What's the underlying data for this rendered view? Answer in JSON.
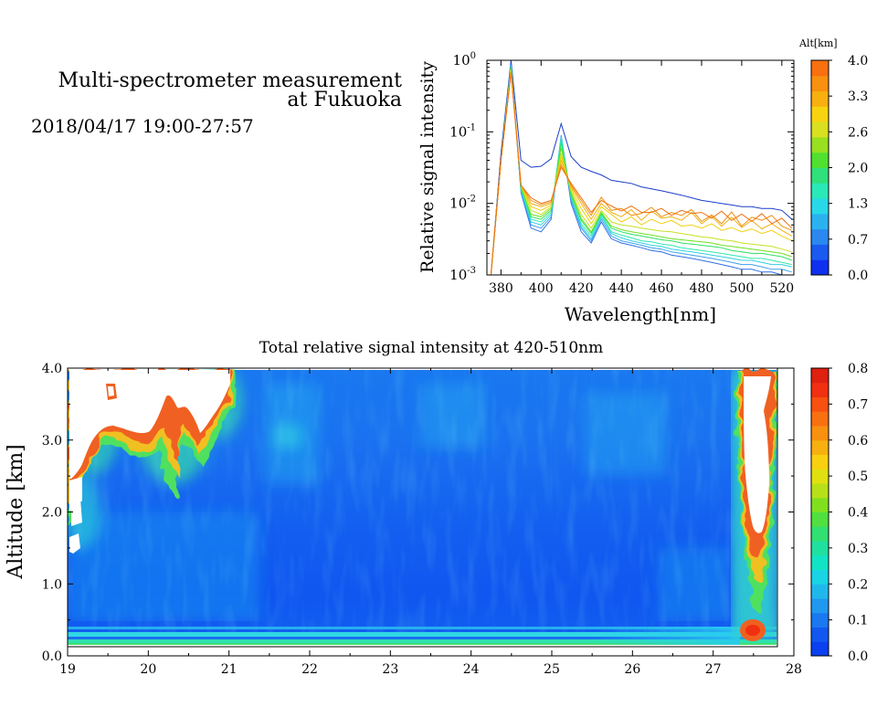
{
  "header": {
    "title_line1": "Multi-spectrometer measurement",
    "title_line2": "at Fukuoka",
    "date_range": "2018/04/17 19:00-27:57"
  },
  "chart_data": [
    {
      "type": "line",
      "xlabel": "Wavelength[nm]",
      "ylabel": "Relative signal intensity",
      "xlim": [
        373,
        526
      ],
      "ylim": [
        0.001,
        1
      ],
      "yscale": "log",
      "x_ticks": [
        380,
        400,
        420,
        440,
        460,
        480,
        500,
        520
      ],
      "y_ticks": [
        {
          "value": 1,
          "base": "10",
          "exp": "0"
        },
        {
          "value": 0.1,
          "base": "10",
          "exp": "-1"
        },
        {
          "value": 0.01,
          "base": "10",
          "exp": "-2"
        },
        {
          "value": 0.001,
          "base": "10",
          "exp": "-3"
        }
      ],
      "x": [
        375,
        380,
        385,
        390,
        395,
        400,
        405,
        410,
        415,
        420,
        425,
        430,
        435,
        440,
        445,
        450,
        455,
        460,
        465,
        470,
        475,
        480,
        485,
        490,
        495,
        500,
        505,
        510,
        515,
        520,
        525
      ],
      "series": [
        {
          "alt_km": 0.0,
          "color": "#1a3ec8",
          "values": [
            0.001,
            0.05,
            1.0,
            0.04,
            0.032,
            0.033,
            0.042,
            0.13,
            0.045,
            0.032,
            0.028,
            0.025,
            0.021,
            0.02,
            0.019,
            0.017,
            0.016,
            0.015,
            0.014,
            0.013,
            0.012,
            0.011,
            0.0105,
            0.01,
            0.0095,
            0.009,
            0.009,
            0.0085,
            0.0085,
            0.008,
            0.006
          ]
        },
        {
          "alt_km": 0.3,
          "color": "#2f6fe8",
          "values": [
            0.001,
            0.04,
            0.9,
            0.014,
            0.0045,
            0.004,
            0.006,
            0.085,
            0.01,
            0.004,
            0.0028,
            0.0055,
            0.0032,
            0.0028,
            0.0026,
            0.0024,
            0.0022,
            0.0021,
            0.0019,
            0.0018,
            0.0017,
            0.0016,
            0.0015,
            0.0014,
            0.0013,
            0.0012,
            0.0012,
            0.0011,
            0.0011,
            0.001,
            0.001
          ]
        },
        {
          "alt_km": 0.6,
          "color": "#3ea0f0",
          "values": [
            0.001,
            0.04,
            0.85,
            0.015,
            0.005,
            0.0045,
            0.0065,
            0.09,
            0.011,
            0.0045,
            0.003,
            0.006,
            0.0035,
            0.003,
            0.0028,
            0.0026,
            0.0024,
            0.0023,
            0.0021,
            0.002,
            0.0019,
            0.0018,
            0.0017,
            0.0016,
            0.0015,
            0.0014,
            0.0014,
            0.0013,
            0.0012,
            0.0012,
            0.0011
          ]
        },
        {
          "alt_km": 1.0,
          "color": "#30d0e0",
          "values": [
            0.001,
            0.04,
            0.85,
            0.015,
            0.0055,
            0.005,
            0.007,
            0.085,
            0.012,
            0.0048,
            0.0032,
            0.0065,
            0.0038,
            0.0033,
            0.003,
            0.0028,
            0.0026,
            0.0025,
            0.0023,
            0.0022,
            0.0021,
            0.002,
            0.0019,
            0.0018,
            0.0017,
            0.0016,
            0.0016,
            0.0015,
            0.0014,
            0.0014,
            0.0013
          ]
        },
        {
          "alt_km": 1.3,
          "color": "#2fe8b0",
          "values": [
            0.001,
            0.04,
            0.82,
            0.016,
            0.006,
            0.0055,
            0.0075,
            0.08,
            0.012,
            0.0052,
            0.0035,
            0.007,
            0.004,
            0.0036,
            0.0033,
            0.003,
            0.0029,
            0.0027,
            0.0026,
            0.0024,
            0.0023,
            0.0022,
            0.0021,
            0.002,
            0.0019,
            0.0018,
            0.0017,
            0.0017,
            0.0016,
            0.0015,
            0.0014
          ]
        },
        {
          "alt_km": 1.7,
          "color": "#30e060",
          "values": [
            0.001,
            0.04,
            0.8,
            0.017,
            0.0065,
            0.006,
            0.008,
            0.07,
            0.013,
            0.0058,
            0.0038,
            0.0072,
            0.0045,
            0.004,
            0.0037,
            0.0035,
            0.0033,
            0.0031,
            0.003,
            0.0028,
            0.0027,
            0.0026,
            0.0025,
            0.0024,
            0.0022,
            0.0021,
            0.002,
            0.002,
            0.0019,
            0.0018,
            0.0016
          ]
        },
        {
          "alt_km": 2.0,
          "color": "#70e020",
          "values": [
            0.001,
            0.04,
            0.78,
            0.017,
            0.007,
            0.0065,
            0.0085,
            0.06,
            0.014,
            0.0062,
            0.004,
            0.0075,
            0.0048,
            0.0043,
            0.004,
            0.0038,
            0.0036,
            0.0034,
            0.0032,
            0.0031,
            0.003,
            0.0029,
            0.0028,
            0.0026,
            0.0025,
            0.0024,
            0.0023,
            0.0022,
            0.0021,
            0.002,
            0.0018
          ]
        },
        {
          "alt_km": 2.3,
          "color": "#c8e020",
          "values": [
            0.001,
            0.04,
            0.75,
            0.018,
            0.008,
            0.007,
            0.009,
            0.05,
            0.015,
            0.007,
            0.0045,
            0.008,
            0.0055,
            0.005,
            0.0048,
            0.0045,
            0.0043,
            0.0041,
            0.004,
            0.0038,
            0.0036,
            0.0034,
            0.0033,
            0.0031,
            0.003,
            0.0028,
            0.0027,
            0.0026,
            0.0025,
            0.0023,
            0.0021
          ]
        },
        {
          "alt_km": 2.6,
          "color": "#f0d010",
          "values": [
            0.001,
            0.04,
            0.72,
            0.018,
            0.009,
            0.008,
            0.0095,
            0.045,
            0.016,
            0.0085,
            0.0052,
            0.009,
            0.007,
            0.0055,
            0.0065,
            0.005,
            0.006,
            0.0052,
            0.0058,
            0.0048,
            0.005,
            0.0045,
            0.0052,
            0.0042,
            0.0046,
            0.004,
            0.0044,
            0.0038,
            0.0042,
            0.0035,
            0.003
          ]
        },
        {
          "alt_km": 3.0,
          "color": "#f0b010",
          "values": [
            0.001,
            0.04,
            0.7,
            0.018,
            0.01,
            0.009,
            0.01,
            0.04,
            0.017,
            0.01,
            0.006,
            0.01,
            0.0075,
            0.0065,
            0.0082,
            0.0058,
            0.0078,
            0.0062,
            0.0065,
            0.0058,
            0.0075,
            0.0052,
            0.0066,
            0.0048,
            0.0064,
            0.0046,
            0.0058,
            0.0044,
            0.0052,
            0.0042,
            0.0035
          ]
        },
        {
          "alt_km": 3.3,
          "color": "#f09010",
          "values": [
            0.001,
            0.04,
            0.68,
            0.018,
            0.011,
            0.0095,
            0.0105,
            0.035,
            0.018,
            0.011,
            0.0068,
            0.0122,
            0.008,
            0.0085,
            0.0068,
            0.0072,
            0.0088,
            0.0065,
            0.0075,
            0.0068,
            0.0082,
            0.0056,
            0.0069,
            0.0052,
            0.0076,
            0.0048,
            0.0064,
            0.0058,
            0.0068,
            0.0048,
            0.0042
          ]
        },
        {
          "alt_km": 3.7,
          "color": "#f07010",
          "values": [
            0.001,
            0.04,
            0.66,
            0.018,
            0.012,
            0.01,
            0.011,
            0.032,
            0.019,
            0.012,
            0.0075,
            0.011,
            0.0092,
            0.0078,
            0.0092,
            0.0075,
            0.0075,
            0.0085,
            0.0068,
            0.008,
            0.0072,
            0.0075,
            0.0062,
            0.0078,
            0.0058,
            0.0071,
            0.0056,
            0.0072,
            0.0052,
            0.0062,
            0.0045
          ]
        }
      ],
      "colorbar": {
        "title": "Alt[km]",
        "tick_labels": [
          "0.0",
          "0.7",
          "1.3",
          "2.0",
          "2.6",
          "3.3",
          "4.0"
        ],
        "colors": [
          "#1030f0",
          "#1a5af0",
          "#2a88f0",
          "#2ab2f0",
          "#28d8e8",
          "#2ae8b8",
          "#30e07a",
          "#50e030",
          "#98e020",
          "#d8e020",
          "#f8d410",
          "#f8b010",
          "#f89010",
          "#f87010"
        ]
      }
    },
    {
      "type": "heatmap",
      "title": "Total relative signal intensity at 420-510nm",
      "ylabel": "Altitude [km]",
      "xlabel": "",
      "xlim": [
        19,
        28
      ],
      "ylim": [
        0,
        4
      ],
      "x_ticks": [
        "19",
        "20",
        "21",
        "22",
        "23",
        "24",
        "25",
        "26",
        "27",
        "28"
      ],
      "y_ticks": [
        "0.0",
        "1.0",
        "2.0",
        "3.0",
        "4.0"
      ],
      "data_x_range": [
        19.0,
        27.95
      ],
      "data_y_range": [
        0.15,
        4.0
      ],
      "value_range": [
        0,
        0.8
      ],
      "colorbar": {
        "tick_labels": [
          "0.0",
          "0.1",
          "0.2",
          "0.3",
          "0.4",
          "0.5",
          "0.6",
          "0.7",
          "0.8"
        ],
        "colors": [
          "#0a40f0",
          "#1258f0",
          "#1a78f0",
          "#2098f0",
          "#20b8ec",
          "#18d4e4",
          "#10e4c4",
          "#20e0a0",
          "#30e070",
          "#50e040",
          "#80e020",
          "#b8e018",
          "#e0e010",
          "#f8d010",
          "#f8b010",
          "#f89010",
          "#f87010",
          "#f85010",
          "#f03010",
          "#e02010"
        ]
      },
      "features": {
        "lowest_layer_km": 0.3,
        "saturated_regions": [
          "19:00-21:00 above ~3.0 km",
          "27:20-27:50 above ~2.0 km"
        ]
      }
    }
  ]
}
